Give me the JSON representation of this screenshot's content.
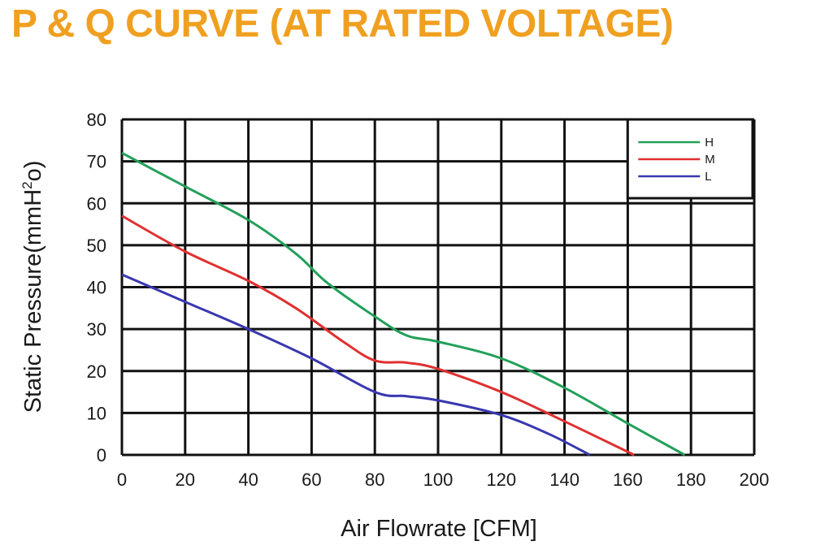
{
  "title": "P & Q CURVE (AT RATED VOLTAGE)",
  "colors": {
    "title": "#f0a020",
    "grid": "#111111",
    "H": "#22a05a",
    "M": "#e03030",
    "L": "#3838b0"
  },
  "chart_data": {
    "type": "line",
    "title": "P & Q CURVE (AT RATED VOLTAGE)",
    "xlabel": "Air  Flowrate   [CFM]",
    "ylabel": "Static Pressure(mmH",
    "ylabel_sup": "2",
    "ylabel_end": "o)",
    "xlim": [
      0,
      200
    ],
    "ylim": [
      0,
      80
    ],
    "xticks": [
      "0",
      "20",
      "40",
      "60",
      "80",
      "100",
      "120",
      "140",
      "160",
      "180",
      "200"
    ],
    "yticks": [
      "0",
      "10",
      "20",
      "30",
      "40",
      "50",
      "60",
      "70",
      "80"
    ],
    "grid": true,
    "legend_position": "top-right",
    "series": [
      {
        "name": "H",
        "color": "#22a05a",
        "points": [
          [
            0,
            72
          ],
          [
            20,
            64
          ],
          [
            40,
            56
          ],
          [
            55,
            48
          ],
          [
            65,
            41
          ],
          [
            80,
            33
          ],
          [
            90,
            28.5
          ],
          [
            100,
            27
          ],
          [
            120,
            23
          ],
          [
            140,
            16
          ],
          [
            160,
            7.5
          ],
          [
            178,
            0
          ]
        ]
      },
      {
        "name": "M",
        "color": "#e03030",
        "points": [
          [
            0,
            57
          ],
          [
            20,
            48.5
          ],
          [
            40,
            41.5
          ],
          [
            55,
            35
          ],
          [
            70,
            27
          ],
          [
            80,
            22.5
          ],
          [
            90,
            22
          ],
          [
            100,
            20.5
          ],
          [
            120,
            15
          ],
          [
            140,
            8
          ],
          [
            162,
            0
          ]
        ]
      },
      {
        "name": "L",
        "color": "#3838b0",
        "points": [
          [
            0,
            43
          ],
          [
            20,
            36.5
          ],
          [
            40,
            30
          ],
          [
            60,
            23
          ],
          [
            80,
            15
          ],
          [
            90,
            14
          ],
          [
            100,
            13
          ],
          [
            120,
            9.5
          ],
          [
            135,
            5
          ],
          [
            148,
            0
          ]
        ]
      }
    ]
  }
}
